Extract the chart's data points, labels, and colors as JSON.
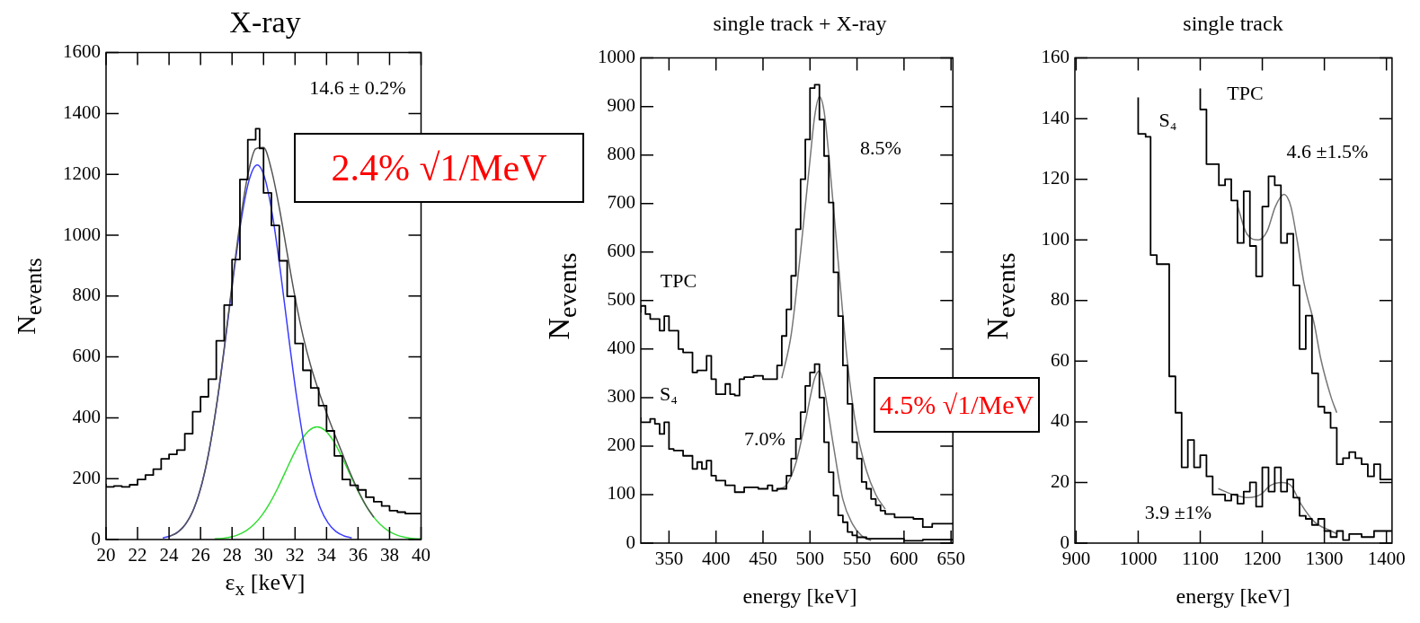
{
  "chart_data": [
    {
      "type": "step",
      "title": "X-ray",
      "xlabel": "ε$_{x}$ [keV]",
      "ylabel": "N$_{events}$",
      "xlim": [
        20,
        40
      ],
      "xticks": [
        20,
        22,
        24,
        26,
        28,
        30,
        32,
        34,
        36,
        38,
        40
      ],
      "ylim": [
        0,
        1600
      ],
      "yticks": [
        0,
        200,
        400,
        600,
        800,
        1000,
        1200,
        1400,
        1600
      ],
      "annotations": [
        "2.4% √1/MeV",
        "14.6 ± 0.2%"
      ],
      "series": [
        {
          "color": "#000000",
          "x": [
            20,
            20.5,
            21,
            21.5,
            22,
            22.5,
            23,
            23.5,
            24,
            24.5,
            25,
            25.5,
            26,
            26.5,
            27,
            27.5,
            28,
            28.5,
            29,
            29.5,
            29.75,
            30,
            30.5,
            31,
            31.5,
            32,
            32.5,
            33,
            33.5,
            34,
            34.5,
            35,
            35.5,
            36,
            36.5,
            37,
            37.5,
            38,
            38.5,
            39,
            39.5,
            40
          ],
          "values": [
            183,
            173,
            176,
            173,
            180,
            197,
            212,
            231,
            265,
            280,
            294,
            348,
            420,
            469,
            527,
            653,
            770,
            920,
            1183,
            1314,
            1350,
            1285,
            1139,
            1032,
            916,
            799,
            644,
            556,
            498,
            440,
            357,
            275,
            197,
            178,
            163,
            139,
            124,
            110,
            95,
            90,
            85,
            85
          ]
        },
        {
          "type": "line",
          "color": "#555555",
          "x": [
            24,
            24.5,
            25,
            25.5,
            26,
            26.5,
            27,
            27.5,
            28,
            28.5,
            29,
            29.5,
            30,
            30.5,
            31,
            31.5,
            32,
            32.5,
            33,
            33.5,
            34,
            34.5,
            35,
            35.5,
            36,
            36.5,
            37
          ],
          "values": [
            10,
            22,
            47,
            92,
            167,
            280,
            436,
            628,
            839,
            1039,
            1197,
            1284,
            1288,
            1215,
            1090,
            941,
            796,
            670,
            570,
            488,
            416,
            348,
            283,
            219,
            161,
            112,
            73
          ]
        },
        {
          "type": "line",
          "color": "#3a3aff",
          "x": [
            23.6,
            24.1,
            24.6,
            25.1,
            25.6,
            26.1,
            26.6,
            27.1,
            27.6,
            28.1,
            28.6,
            29.1,
            29.6,
            30.1,
            30.6,
            31.1,
            31.6,
            32.1,
            32.6,
            33.1,
            33.6,
            34.1,
            34.6,
            35.1,
            35.6
          ],
          "values": [
            5,
            12,
            26,
            54,
            104,
            186,
            307,
            469,
            664,
            870,
            1055,
            1184,
            1231,
            1184,
            1055,
            870,
            664,
            469,
            307,
            186,
            104,
            54,
            26,
            12,
            5
          ]
        },
        {
          "type": "line",
          "color": "#33dd33",
          "x": [
            26.9,
            27.4,
            27.9,
            28.4,
            28.9,
            29.4,
            29.9,
            30.4,
            30.9,
            31.4,
            31.9,
            32.4,
            32.9,
            33.4,
            33.9,
            34.4,
            34.9,
            35.4,
            35.9,
            36.4,
            36.9,
            37.4,
            37.9,
            38.4,
            38.9,
            39.4,
            40
          ],
          "values": [
            2,
            4,
            8,
            16,
            29,
            50,
            80,
            120,
            169,
            224,
            279,
            327,
            359,
            370,
            359,
            327,
            279,
            224,
            169,
            120,
            80,
            50,
            29,
            16,
            8,
            4,
            2
          ]
        }
      ]
    },
    {
      "type": "step",
      "title": "single track + X-ray",
      "xlabel": "energy [keV]",
      "ylabel": "N$_{events}$",
      "xlim": [
        320,
        652
      ],
      "xticks": [
        350,
        400,
        450,
        500,
        550,
        600,
        650
      ],
      "ylim": [
        0,
        1000
      ],
      "yticks": [
        0,
        100,
        200,
        300,
        400,
        500,
        600,
        700,
        800,
        900,
        1000
      ],
      "annotations": [
        "4.5% √1/MeV",
        "8.5%",
        "7.0%"
      ],
      "series": [
        {
          "name": "TPC",
          "color": "#000000",
          "x": [
            320,
            325,
            330,
            340,
            345,
            350,
            355,
            360,
            365,
            375,
            380,
            390,
            395,
            400,
            410,
            415,
            420,
            425,
            430,
            440,
            450,
            460,
            465,
            470,
            475,
            480,
            485,
            490,
            495,
            500,
            505,
            510,
            515,
            520,
            525,
            530,
            535,
            540,
            545,
            550,
            555,
            560,
            565,
            570,
            575,
            580,
            590,
            600,
            610,
            620,
            630,
            640,
            652
          ],
          "values": [
            475,
            489,
            472,
            462,
            438,
            468,
            438,
            438,
            400,
            393,
            352,
            356,
            386,
            338,
            307,
            328,
            307,
            304,
            338,
            342,
            345,
            338,
            338,
            366,
            427,
            482,
            551,
            647,
            750,
            832,
            938,
            945,
            873,
            798,
            702,
            558,
            468,
            366,
            287,
            208,
            174,
            126,
            112,
            91,
            78,
            67,
            60,
            53,
            53,
            50,
            33,
            40,
            40
          ]
        },
        {
          "name": "S₄",
          "color": "#000000",
          "x": [
            320,
            330,
            335,
            340,
            345,
            350,
            355,
            365,
            375,
            380,
            385,
            390,
            395,
            400,
            410,
            420,
            430,
            435,
            445,
            455,
            460,
            465,
            475,
            480,
            485,
            490,
            495,
            500,
            505,
            510,
            515,
            520,
            525,
            530,
            535,
            540,
            545,
            550,
            560,
            580,
            600,
            620,
            640,
            652
          ],
          "values": [
            259,
            249,
            256,
            246,
            225,
            249,
            194,
            191,
            180,
            153,
            167,
            153,
            170,
            139,
            129,
            119,
            105,
            115,
            115,
            112,
            119,
            108,
            112,
            139,
            174,
            215,
            270,
            324,
            352,
            369,
            300,
            208,
            146,
            98,
            57,
            43,
            23,
            16,
            12,
            9,
            9,
            5,
            7,
            7
          ]
        },
        {
          "type": "line",
          "color": "#777777",
          "x": [
            470,
            480,
            490,
            500,
            505,
            510,
            515,
            520,
            530,
            540,
            550,
            560,
            570,
            580
          ],
          "values": [
            340,
            430,
            600,
            790,
            880,
            920,
            890,
            800,
            580,
            370,
            230,
            150,
            100,
            70
          ]
        },
        {
          "type": "line",
          "color": "#777777",
          "x": [
            465,
            475,
            485,
            495,
            505,
            510,
            515,
            525,
            535,
            545,
            555,
            565
          ],
          "values": [
            110,
            120,
            165,
            250,
            340,
            355,
            320,
            200,
            90,
            40,
            15,
            5
          ]
        }
      ]
    },
    {
      "type": "step",
      "title": "single track",
      "xlabel": "energy [keV]",
      "ylabel": "N$_{events}$",
      "xlim": [
        898,
        1409
      ],
      "xticks": [
        900,
        1000,
        1100,
        1200,
        1300,
        1400
      ],
      "ylim": [
        0,
        160
      ],
      "yticks": [
        0,
        20,
        40,
        60,
        80,
        100,
        120,
        140,
        160
      ],
      "annotations": [
        "4.6 ±1.5%",
        "3.9 ±1%"
      ],
      "series": [
        {
          "name": "TPC",
          "color": "#000000",
          "x": [
            1100,
            1110,
            1130,
            1140,
            1150,
            1160,
            1170,
            1180,
            1190,
            1200,
            1210,
            1220,
            1230,
            1240,
            1250,
            1260,
            1270,
            1280,
            1290,
            1300,
            1310,
            1320,
            1330,
            1340,
            1350,
            1360,
            1370,
            1380,
            1390,
            1400,
            1409
          ],
          "values": [
            150,
            143,
            125,
            118,
            120,
            113,
            99,
            116,
            98,
            88,
            111,
            121,
            118,
            99,
            102,
            85,
            64,
            75,
            56,
            45,
            43,
            38,
            26,
            28,
            30,
            28,
            26,
            22,
            26,
            21,
            21
          ]
        },
        {
          "name": "S₄",
          "color": "#000000",
          "x": [
            1000,
            1012,
            1020,
            1030,
            1050,
            1060,
            1070,
            1080,
            1090,
            1100,
            1110,
            1120,
            1140,
            1150,
            1160,
            1170,
            1180,
            1190,
            1200,
            1210,
            1220,
            1230,
            1240,
            1250,
            1260,
            1270,
            1280,
            1290,
            1300,
            1310,
            1320,
            1330,
            1340,
            1350,
            1360,
            1380,
            1390,
            1400,
            1409
          ],
          "values": [
            147,
            135,
            134,
            95,
            92,
            55,
            43,
            25,
            34,
            25,
            29,
            22,
            16,
            14,
            16,
            13,
            17,
            20,
            12,
            25,
            17,
            25,
            17,
            21,
            15,
            9,
            8,
            6,
            8,
            4,
            2,
            4,
            1,
            3,
            3,
            2,
            4,
            4,
            4
          ]
        },
        {
          "type": "line",
          "color": "#777777",
          "x": [
            1159,
            1175,
            1194,
            1208,
            1221,
            1235,
            1246,
            1256,
            1267,
            1284,
            1294,
            1311,
            1320
          ],
          "values": [
            112,
            102,
            100,
            103,
            111,
            115,
            111,
            100,
            86,
            72,
            61,
            48,
            43
          ]
        },
        {
          "type": "line",
          "color": "#777777",
          "x": [
            1129,
            1153,
            1178,
            1197,
            1213,
            1232,
            1246,
            1262,
            1284,
            1311,
            1321
          ],
          "values": [
            18,
            16,
            15,
            16,
            19,
            20,
            19,
            13,
            7,
            4,
            3
          ]
        }
      ]
    }
  ]
}
